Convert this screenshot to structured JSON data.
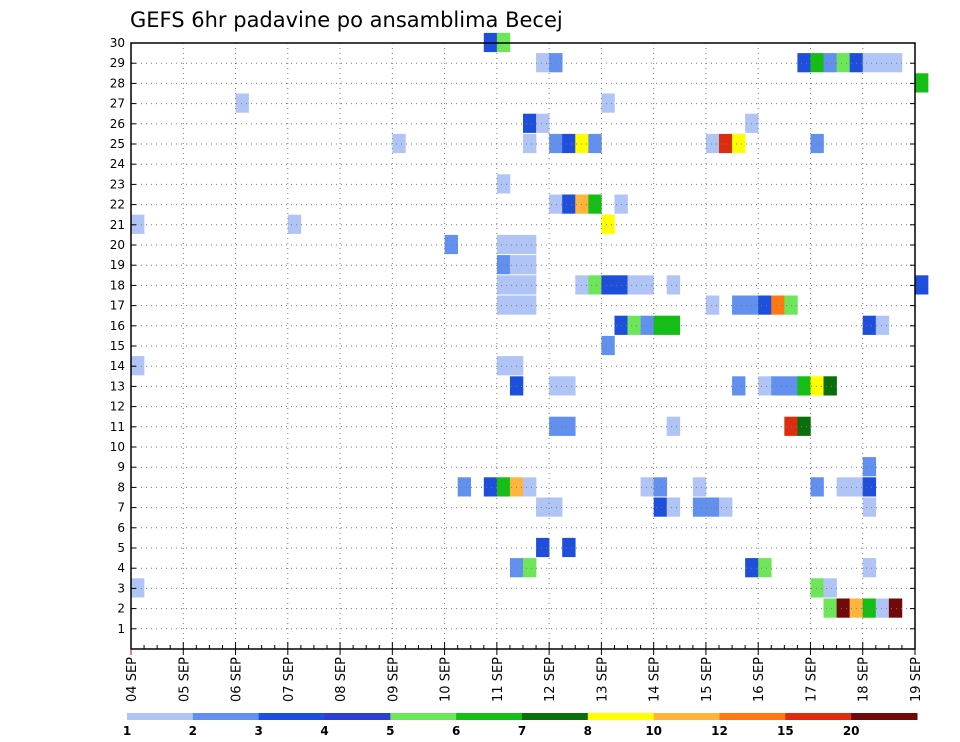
{
  "chart_data": {
    "type": "heatmap",
    "title": "GEFS 6hr padavine po ansamblima Becej",
    "xlabel": "",
    "ylabel": "",
    "x_tick_labels": [
      "04 SEP",
      "05 SEP",
      "06 SEP",
      "07 SEP",
      "08 SEP",
      "09 SEP",
      "10 SEP",
      "11 SEP",
      "12 SEP",
      "13 SEP",
      "14 SEP",
      "15 SEP",
      "16 SEP",
      "17 SEP",
      "18 SEP",
      "19 SEP"
    ],
    "y_tick_labels": [
      "1",
      "2",
      "3",
      "4",
      "5",
      "6",
      "7",
      "8",
      "9",
      "10",
      "11",
      "12",
      "13",
      "14",
      "15",
      "16",
      "17",
      "18",
      "19",
      "20",
      "21",
      "22",
      "23",
      "24",
      "25",
      "26",
      "27",
      "28",
      "29",
      "30"
    ],
    "x_range_days": [
      0,
      15
    ],
    "y_range": [
      0,
      30
    ],
    "grid": true,
    "legend": {
      "placement": "bottom",
      "labels": [
        "1",
        "2",
        "3",
        "4",
        "5",
        "6",
        "7",
        "8",
        "10",
        "12",
        "15",
        "20"
      ],
      "colors": [
        "#b0c4f6",
        "#6190ee",
        "#1e4fdc",
        "#2c3fd0",
        "#6ee65a",
        "#14be14",
        "#0a6e0a",
        "#ffff00",
        "#ffb43c",
        "#ff7814",
        "#dc2d0f",
        "#700a0a"
      ]
    },
    "cells": [
      [
        30,
        6.75,
        3
      ],
      [
        30,
        7.0,
        5
      ],
      [
        29,
        7.75,
        1
      ],
      [
        29,
        8.0,
        2
      ],
      [
        29,
        12.75,
        3
      ],
      [
        29,
        13.0,
        6
      ],
      [
        29,
        13.25,
        2
      ],
      [
        29,
        13.5,
        5
      ],
      [
        29,
        13.75,
        3
      ],
      [
        29,
        14.0,
        1
      ],
      [
        29,
        14.25,
        1
      ],
      [
        29,
        14.5,
        1
      ],
      [
        28,
        15.0,
        6
      ],
      [
        27,
        2.0,
        1
      ],
      [
        27,
        9.0,
        1
      ],
      [
        26,
        7.5,
        3
      ],
      [
        26,
        7.75,
        1
      ],
      [
        26,
        11.75,
        1
      ],
      [
        25,
        5.0,
        1
      ],
      [
        25,
        7.5,
        1
      ],
      [
        25,
        8.0,
        2
      ],
      [
        25,
        8.25,
        3
      ],
      [
        25,
        8.5,
        8
      ],
      [
        25,
        8.75,
        2
      ],
      [
        25,
        11.0,
        1
      ],
      [
        25,
        11.25,
        15
      ],
      [
        25,
        11.5,
        8
      ],
      [
        25,
        13.0,
        2
      ],
      [
        23,
        7.0,
        1
      ],
      [
        22,
        8.0,
        1
      ],
      [
        22,
        8.25,
        3
      ],
      [
        22,
        8.5,
        10
      ],
      [
        22,
        8.75,
        6
      ],
      [
        22,
        9.25,
        1
      ],
      [
        21,
        0.0,
        1
      ],
      [
        21,
        3.0,
        1
      ],
      [
        21,
        9.0,
        8
      ],
      [
        20,
        6.0,
        2
      ],
      [
        20,
        7.0,
        1
      ],
      [
        20,
        7.25,
        1
      ],
      [
        20,
        7.5,
        1
      ],
      [
        19,
        7.0,
        2
      ],
      [
        19,
        7.25,
        1
      ],
      [
        19,
        7.5,
        1
      ],
      [
        18,
        7.0,
        1
      ],
      [
        18,
        7.25,
        1
      ],
      [
        18,
        7.5,
        1
      ],
      [
        18,
        8.5,
        1
      ],
      [
        18,
        8.75,
        5
      ],
      [
        18,
        9.0,
        3
      ],
      [
        18,
        9.25,
        3
      ],
      [
        18,
        9.5,
        1
      ],
      [
        18,
        9.75,
        1
      ],
      [
        18,
        10.25,
        1
      ],
      [
        18,
        15.0,
        3
      ],
      [
        17,
        7.0,
        1
      ],
      [
        17,
        7.25,
        1
      ],
      [
        17,
        7.5,
        1
      ],
      [
        17,
        11.0,
        1
      ],
      [
        17,
        11.5,
        2
      ],
      [
        17,
        11.75,
        2
      ],
      [
        17,
        12.0,
        3
      ],
      [
        17,
        12.25,
        12
      ],
      [
        17,
        12.5,
        5
      ],
      [
        16,
        9.25,
        3
      ],
      [
        16,
        9.5,
        5
      ],
      [
        16,
        9.75,
        2
      ],
      [
        16,
        10.0,
        6
      ],
      [
        16,
        10.25,
        6
      ],
      [
        16,
        14.0,
        3
      ],
      [
        16,
        14.25,
        1
      ],
      [
        15,
        9.0,
        2
      ],
      [
        14,
        0.0,
        1
      ],
      [
        14,
        7.0,
        1
      ],
      [
        14,
        7.25,
        1
      ],
      [
        13,
        7.25,
        3
      ],
      [
        13,
        8.0,
        1
      ],
      [
        13,
        8.25,
        1
      ],
      [
        13,
        11.5,
        2
      ],
      [
        13,
        12.0,
        1
      ],
      [
        13,
        12.25,
        2
      ],
      [
        13,
        12.5,
        2
      ],
      [
        13,
        12.75,
        6
      ],
      [
        13,
        13.0,
        8
      ],
      [
        13,
        13.25,
        7
      ],
      [
        11,
        8.0,
        2
      ],
      [
        11,
        8.25,
        2
      ],
      [
        11,
        10.25,
        1
      ],
      [
        11,
        12.5,
        15
      ],
      [
        11,
        12.75,
        7
      ],
      [
        9,
        14.0,
        2
      ],
      [
        8,
        6.25,
        2
      ],
      [
        8,
        6.75,
        3
      ],
      [
        8,
        7.0,
        6
      ],
      [
        8,
        7.25,
        10
      ],
      [
        8,
        7.5,
        1
      ],
      [
        8,
        9.75,
        1
      ],
      [
        8,
        10.0,
        2
      ],
      [
        8,
        10.75,
        1
      ],
      [
        8,
        13.0,
        2
      ],
      [
        8,
        13.5,
        1
      ],
      [
        8,
        13.75,
        1
      ],
      [
        8,
        14.0,
        3
      ],
      [
        7,
        7.75,
        1
      ],
      [
        7,
        8.0,
        1
      ],
      [
        7,
        10.0,
        3
      ],
      [
        7,
        10.25,
        1
      ],
      [
        7,
        10.75,
        2
      ],
      [
        7,
        11.0,
        2
      ],
      [
        7,
        11.25,
        1
      ],
      [
        7,
        14.0,
        1
      ],
      [
        5,
        7.75,
        3
      ],
      [
        5,
        8.25,
        3
      ],
      [
        4,
        7.25,
        2
      ],
      [
        4,
        7.5,
        5
      ],
      [
        4,
        11.75,
        3
      ],
      [
        4,
        12.0,
        5
      ],
      [
        4,
        14.0,
        1
      ],
      [
        3,
        0.0,
        1
      ],
      [
        3,
        13.0,
        5
      ],
      [
        3,
        13.25,
        1
      ],
      [
        2,
        13.25,
        5
      ],
      [
        2,
        13.5,
        20
      ],
      [
        2,
        13.75,
        10
      ],
      [
        2,
        14.0,
        6
      ],
      [
        2,
        14.25,
        1
      ],
      [
        2,
        14.5,
        20
      ]
    ]
  }
}
